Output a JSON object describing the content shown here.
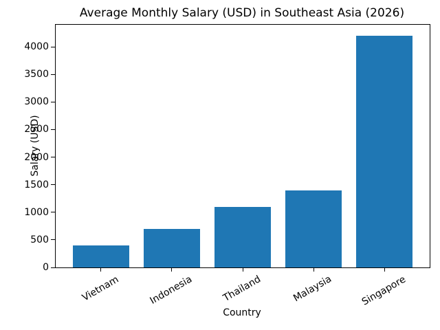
{
  "chart_data": {
    "type": "bar",
    "title": "Average Monthly Salary (USD) in Southeast Asia (2026)",
    "xlabel": "Country",
    "ylabel": "Salary (USD)",
    "categories": [
      "Vietnam",
      "Indonesia",
      "Thailand",
      "Malaysia",
      "Singapore"
    ],
    "values": [
      400,
      700,
      1100,
      1400,
      4200
    ],
    "yticks": [
      0,
      500,
      1000,
      1500,
      2000,
      2500,
      3000,
      3500,
      4000
    ],
    "ylim": [
      0,
      4400
    ],
    "x_tick_rotation_deg": 30,
    "grid": false,
    "legend": "none",
    "bar_color": "#1f77b4",
    "axis_color": "#000000",
    "background_color": "#ffffff"
  }
}
